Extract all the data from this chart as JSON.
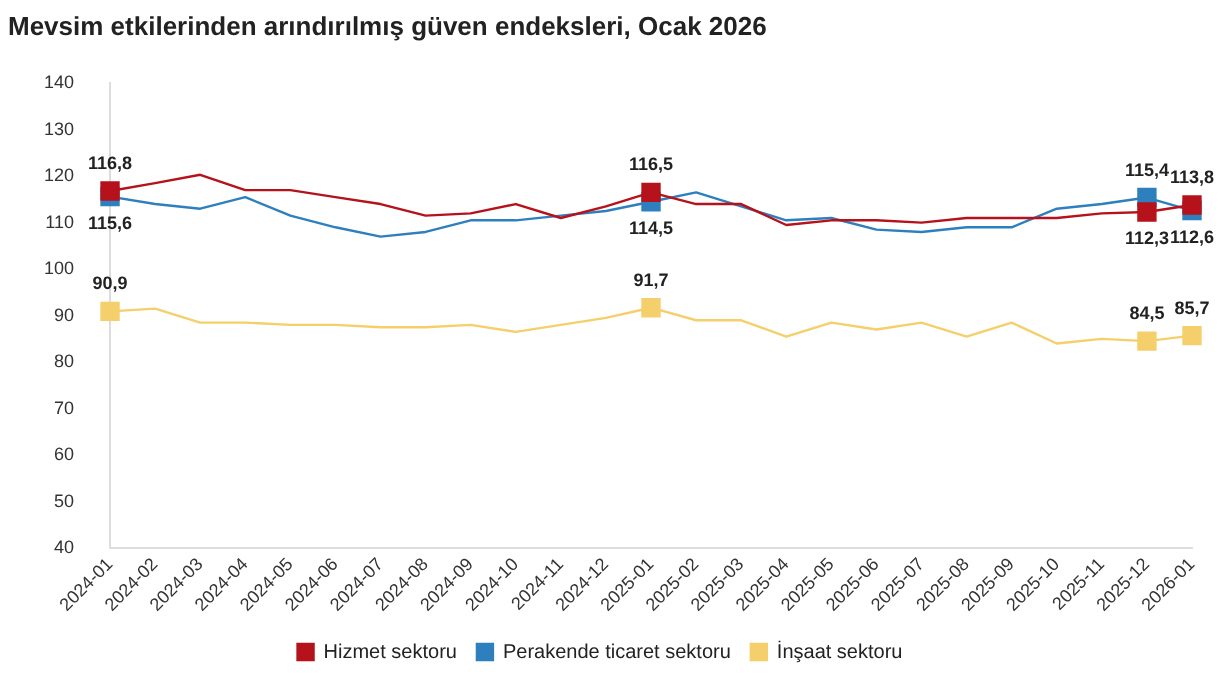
{
  "chart_data": {
    "type": "line",
    "title": "Mevsim etkilerinden arındırılmış güven endeksleri, Ocak 2026",
    "categories": [
      "2024-01",
      "2024-02",
      "2024-03",
      "2024-04",
      "2024-05",
      "2024-06",
      "2024-07",
      "2024-08",
      "2024-09",
      "2024-10",
      "2024-11",
      "2024-12",
      "2025-01",
      "2025-02",
      "2025-03",
      "2025-04",
      "2025-05",
      "2025-06",
      "2025-07",
      "2025-08",
      "2025-09",
      "2025-10",
      "2025-11",
      "2025-12",
      "2026-01"
    ],
    "series": [
      {
        "name": "Hizmet sektoru",
        "color": "#b5121b",
        "values": [
          116.8,
          118.5,
          120.3,
          117,
          117,
          115.5,
          114,
          111.5,
          112,
          114,
          111,
          113.5,
          116.5,
          114,
          114,
          109.5,
          110.5,
          110.5,
          110,
          111,
          111,
          111,
          112,
          112.3,
          113.8
        ],
        "value_labels": [
          "116,8",
          null,
          null,
          null,
          null,
          null,
          null,
          null,
          null,
          null,
          null,
          null,
          "116,5",
          null,
          null,
          null,
          null,
          null,
          null,
          null,
          null,
          null,
          null,
          "112,3",
          "113,8"
        ]
      },
      {
        "name": "Perakende ticaret sektoru",
        "color": "#2e7fbd",
        "values": [
          115.6,
          114,
          113,
          115.5,
          111.5,
          109,
          107,
          108,
          110.5,
          110.5,
          111.5,
          112.5,
          114.5,
          116.5,
          113.5,
          110.5,
          111,
          108.5,
          108,
          109,
          109,
          113,
          114,
          115.4,
          112.6
        ],
        "value_labels": [
          "115,6",
          null,
          null,
          null,
          null,
          null,
          null,
          null,
          null,
          null,
          null,
          null,
          "114,5",
          null,
          null,
          null,
          null,
          null,
          null,
          null,
          null,
          null,
          null,
          "115,4",
          "112,6"
        ]
      },
      {
        "name": "İnşaat sektoru",
        "color": "#f5cf6b",
        "values": [
          90.9,
          91.5,
          88.5,
          88.5,
          88,
          88,
          87.5,
          87.5,
          88,
          86.5,
          88,
          89.5,
          91.7,
          89,
          89,
          85.5,
          88.5,
          87,
          88.5,
          85.5,
          88.5,
          84,
          85,
          84.5,
          85.7
        ],
        "value_labels": [
          "90,9",
          null,
          null,
          null,
          null,
          null,
          null,
          null,
          null,
          null,
          null,
          null,
          "91,7",
          null,
          null,
          null,
          null,
          null,
          null,
          null,
          null,
          null,
          null,
          "84,5",
          "85,7"
        ]
      }
    ],
    "ylim": [
      40,
      140
    ],
    "yticks": [
      40,
      50,
      60,
      70,
      80,
      90,
      100,
      110,
      120,
      130,
      140
    ],
    "grid": false,
    "legend": "bottom",
    "line_style": "solid"
  }
}
